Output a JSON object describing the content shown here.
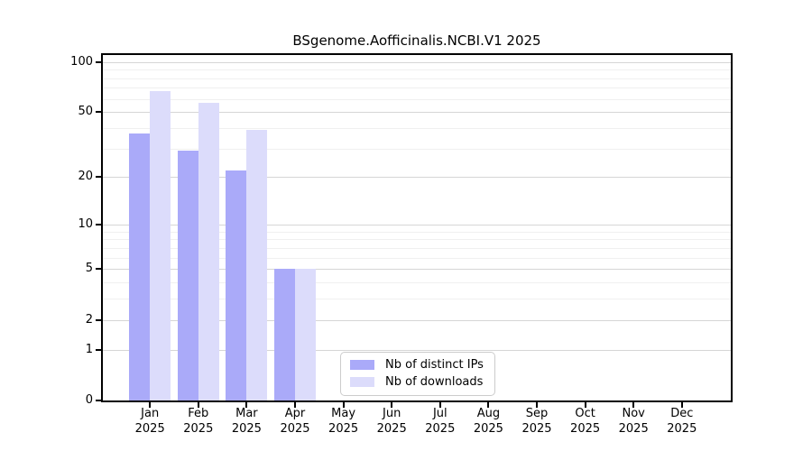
{
  "chart_data": {
    "type": "bar",
    "title": "BSgenome.Aofficinalis.NCBI.V1 2025",
    "months": [
      "Jan",
      "Feb",
      "Mar",
      "Apr",
      "May",
      "Jun",
      "Jul",
      "Aug",
      "Sep",
      "Oct",
      "Nov",
      "Dec"
    ],
    "year": "2025",
    "series": [
      {
        "name": "Nb of distinct IPs",
        "color": "#aaaaf9",
        "values": [
          37,
          29,
          22,
          5,
          0,
          0,
          0,
          0,
          0,
          0,
          0,
          0
        ]
      },
      {
        "name": "Nb of downloads",
        "color": "#dcdcfb",
        "values": [
          67,
          57,
          39,
          5,
          0,
          0,
          0,
          0,
          0,
          0,
          0,
          0
        ]
      }
    ],
    "yticks": [
      0,
      1,
      2,
      5,
      10,
      20,
      50,
      100
    ],
    "yticks_minor": [
      3,
      4,
      6,
      7,
      8,
      9,
      30,
      40,
      60,
      70,
      80,
      90
    ],
    "ylim": [
      0,
      110
    ],
    "scale": "log1p",
    "grid": true,
    "legend_position": "bottom-center-inside",
    "colors": {
      "major_grid": "#d6d6d6",
      "minor_grid": "#f0f0f0",
      "axis": "#000000",
      "background": "#ffffff"
    }
  }
}
